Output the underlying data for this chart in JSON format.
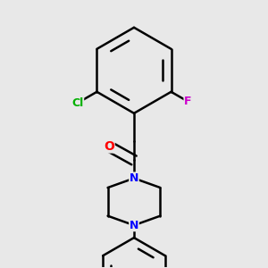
{
  "bg_color": "#e8e8e8",
  "bond_color": "#000000",
  "bond_width": 1.8,
  "atom_colors": {
    "Cl": "#00b000",
    "F": "#cc00cc",
    "O": "#ff0000",
    "N": "#0000ff",
    "C": "#000000"
  },
  "fig_size": [
    3.0,
    3.0
  ],
  "dpi": 100,
  "xlim": [
    0.05,
    0.95
  ],
  "ylim": [
    0.02,
    0.98
  ]
}
